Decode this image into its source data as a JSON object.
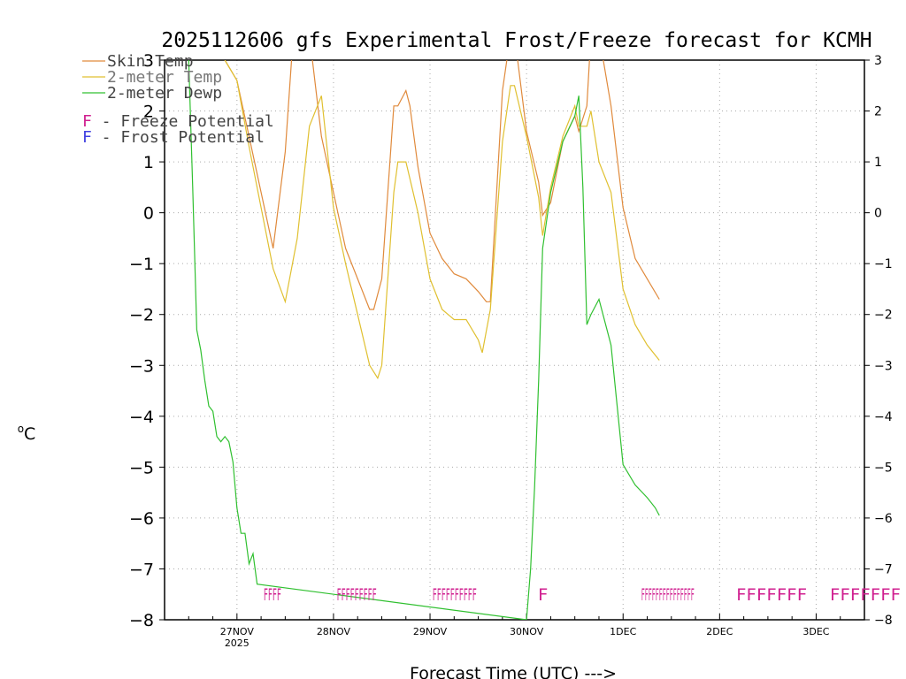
{
  "chart_data": {
    "type": "line",
    "title": "2025112606 gfs Experimental Frost/Freeze forecast for KCMH",
    "xlabel": "Forecast Time (UTC) --->",
    "ylabel": "oC",
    "ylabel_degree": "o",
    "ylabel_unit": "C",
    "ylim": [
      -8,
      3
    ],
    "yticks": [
      3,
      2,
      1,
      0,
      -1,
      -2,
      -3,
      -4,
      -5,
      -6,
      -7,
      -8
    ],
    "yticks_left": [
      "3",
      "2",
      "1",
      "0",
      "−1",
      "−2",
      "−3",
      "−4",
      "−5",
      "−6",
      "−7",
      "−8"
    ],
    "yticks_right": [
      "3",
      "2",
      "1",
      "0",
      "−1",
      "−2",
      "−3",
      "−4",
      "−5",
      "−6",
      "−7",
      "−8"
    ],
    "x_unit": "hours since 2025-11-26 06 UTC",
    "xlim": [
      0,
      174
    ],
    "xticks": [
      {
        "hour": 18,
        "label": "27NOV",
        "sublabel": "2025"
      },
      {
        "hour": 42,
        "label": "28NOV",
        "sublabel": ""
      },
      {
        "hour": 66,
        "label": "29NOV",
        "sublabel": ""
      },
      {
        "hour": 90,
        "label": "30NOV",
        "sublabel": ""
      },
      {
        "hour": 114,
        "label": "1DEC",
        "sublabel": ""
      },
      {
        "hour": 138,
        "label": "2DEC",
        "sublabel": ""
      },
      {
        "hour": 162,
        "label": "3DEC",
        "sublabel": ""
      }
    ],
    "grid": true,
    "series": [
      {
        "name": "Skin Temp",
        "color": "#e08a3c",
        "x": [
          15,
          18,
          21,
          24,
          27,
          30,
          32,
          33,
          34,
          36,
          39,
          42,
          45,
          48,
          51,
          52,
          54,
          57,
          58,
          60,
          61,
          63,
          66,
          69,
          72,
          75,
          78,
          80,
          81,
          84,
          86,
          87,
          90,
          93,
          94,
          96,
          99,
          102,
          103,
          105,
          106,
          108,
          111,
          114,
          117,
          120,
          123
        ],
        "values": [
          3,
          2.6,
          1.5,
          0.4,
          -0.7,
          1.2,
          3.5,
          3.5,
          3.5,
          3.5,
          1.5,
          0.4,
          -0.7,
          -1.3,
          -1.9,
          -1.9,
          -1.3,
          2.1,
          2.1,
          2.4,
          2.1,
          0.9,
          -0.4,
          -0.9,
          -1.2,
          -1.3,
          -1.55,
          -1.75,
          -1.75,
          2.4,
          3.5,
          3.5,
          1.6,
          0.6,
          -0.05,
          0.2,
          1.4,
          1.9,
          1.6,
          2.1,
          3.5,
          3.5,
          2.1,
          0.1,
          -0.9,
          -1.3,
          -1.7
        ]
      },
      {
        "name": "2-meter Temp",
        "color": "#e0c030",
        "x": [
          15,
          18,
          21,
          24,
          27,
          30,
          33,
          36,
          39,
          42,
          45,
          48,
          51,
          53,
          54,
          57,
          58,
          60,
          63,
          66,
          69,
          72,
          75,
          78,
          79,
          81,
          84,
          86,
          87,
          90,
          93,
          94,
          96,
          99,
          102,
          103,
          105,
          106,
          108,
          111,
          114,
          117,
          120,
          123
        ],
        "values": [
          3,
          2.6,
          1.3,
          0.1,
          -1.1,
          -1.75,
          -0.5,
          1.7,
          2.3,
          0.1,
          -1.0,
          -2.0,
          -3.0,
          -3.25,
          -3.0,
          0.4,
          1.0,
          1.0,
          0,
          -1.3,
          -1.9,
          -2.1,
          -2.1,
          -2.5,
          -2.75,
          -1.9,
          1.4,
          2.5,
          2.5,
          1.5,
          0.3,
          -0.45,
          0.5,
          1.5,
          2.1,
          1.7,
          1.7,
          2.0,
          1.0,
          0.4,
          -1.5,
          -2.2,
          -2.6,
          -2.9
        ]
      },
      {
        "name": "2-meter Dewp",
        "color": "#30c030",
        "x": [
          6,
          7,
          8,
          9,
          10,
          11,
          12,
          13,
          14,
          15,
          16,
          17,
          18,
          19,
          20,
          21,
          22,
          23,
          90,
          91,
          92,
          93,
          94,
          96,
          99,
          102,
          103,
          104,
          105,
          106,
          108,
          111,
          114,
          117,
          120,
          122,
          123
        ],
        "values": [
          3,
          0.5,
          -2.3,
          -2.7,
          -3.3,
          -3.8,
          -3.9,
          -4.4,
          -4.5,
          -4.4,
          -4.5,
          -4.9,
          -5.8,
          -6.3,
          -6.3,
          -6.9,
          -6.7,
          -7.3,
          -8,
          -7,
          -5.4,
          -3.3,
          -0.7,
          0.4,
          1.4,
          1.9,
          2.3,
          0.5,
          -2.2,
          -2.0,
          -1.7,
          -2.6,
          -4.95,
          -5.35,
          -5.6,
          -5.8,
          -5.95
        ]
      }
    ],
    "legend": {
      "placement": "top-left",
      "items": [
        {
          "label": "Skin Temp",
          "color": "#e08a3c"
        },
        {
          "label": "2-meter Temp",
          "color": "#e0c030"
        },
        {
          "label": "2-meter Dewp",
          "color": "#30c030"
        }
      ],
      "markers": [
        {
          "symbol": "F",
          "label": " - Freeze Potential",
          "color": "#d02090"
        },
        {
          "symbol": "F",
          "label": " - Frost Potential",
          "color": "#4040e0"
        }
      ]
    },
    "freeze_markers": {
      "color": "#d02090",
      "y": -7.5,
      "groups": [
        {
          "hour": 24.6,
          "text": "FFFF"
        },
        {
          "hour": 42.8,
          "text": "FFFFFFFFF"
        },
        {
          "hour": 66.6,
          "text": "FFFFFFFFFF"
        },
        {
          "hour": 92.8,
          "text": "F"
        },
        {
          "hour": 118.5,
          "text": "FFFFFFFFFFFFFFF"
        },
        {
          "hour": 142.1,
          "text": "FFFFFFF"
        },
        {
          "hour": 165.4,
          "text": "FFFFFFF"
        }
      ],
      "dense_letter_width": [
        5,
        5,
        5,
        0,
        4,
        0,
        0
      ]
    }
  }
}
